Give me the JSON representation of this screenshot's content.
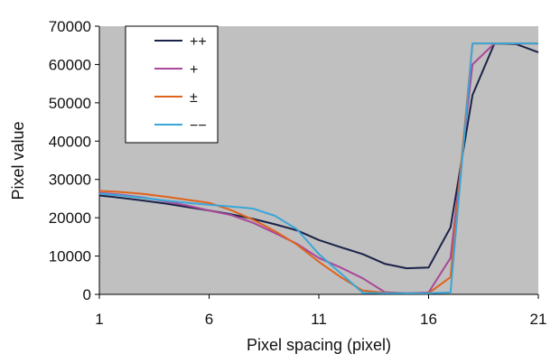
{
  "chart_data": {
    "type": "line",
    "title": "",
    "xlabel": "Pixel spacing (pixel)",
    "ylabel": "Pixel value",
    "x": [
      1,
      2,
      3,
      4,
      5,
      6,
      7,
      8,
      9,
      10,
      11,
      12,
      13,
      14,
      15,
      16,
      17,
      18,
      19,
      20,
      21
    ],
    "xlim": [
      1,
      21
    ],
    "ylim": [
      0,
      70000
    ],
    "x_ticks": [
      1,
      6,
      11,
      16,
      21
    ],
    "y_ticks": [
      0,
      10000,
      20000,
      30000,
      40000,
      50000,
      60000,
      70000
    ],
    "grid": false,
    "plot_background": "#c0c0c0",
    "legend_position": "top-left",
    "series": [
      {
        "name": "++",
        "color": "#1b2248",
        "values": [
          25800,
          25200,
          24500,
          23700,
          22800,
          21900,
          20900,
          19700,
          18300,
          16700,
          14200,
          12300,
          10500,
          8000,
          6800,
          7000,
          17500,
          52000,
          65500,
          65300,
          63200
        ]
      },
      {
        "name": "+",
        "color": "#a9479a",
        "values": [
          26500,
          26000,
          25300,
          24300,
          23200,
          21900,
          20700,
          18700,
          16000,
          13200,
          9500,
          7000,
          4200,
          600,
          300,
          500,
          9500,
          60000,
          65500,
          65500,
          65500
        ]
      },
      {
        "name": "±",
        "color": "#e0621c",
        "values": [
          27000,
          26700,
          26200,
          25500,
          24700,
          23900,
          22000,
          19500,
          16500,
          13000,
          8500,
          4500,
          1000,
          400,
          300,
          300,
          4500,
          65500,
          65500,
          65500,
          65500
        ]
      },
      {
        "name": "−−",
        "color": "#3aa6d8",
        "values": [
          26300,
          25800,
          25200,
          24500,
          23900,
          23400,
          22900,
          22400,
          20500,
          17000,
          10500,
          5500,
          400,
          300,
          300,
          300,
          500,
          65500,
          65500,
          65500,
          65500
        ]
      }
    ]
  }
}
